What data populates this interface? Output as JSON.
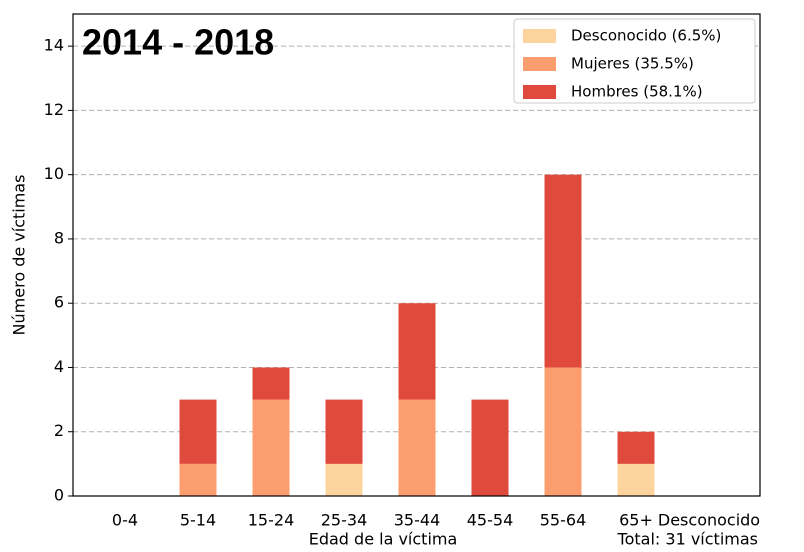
{
  "chart_data": {
    "type": "bar",
    "stacked": true,
    "title": "2014 - 2018",
    "xlabel": "Edad de la víctima",
    "ylabel": "Número de víctimas",
    "note": "Total: 31 víctimas",
    "categories": [
      "0-4",
      "5-14",
      "15-24",
      "25-34",
      "35-44",
      "45-54",
      "55-64",
      "65+",
      "Desconocido"
    ],
    "series": [
      {
        "name": "Desconocido (6.5%)",
        "color": "#fdd49e",
        "values": [
          0,
          0,
          0,
          1,
          0,
          0,
          0,
          1,
          0
        ]
      },
      {
        "name": "Mujeres (35.5%)",
        "color": "#fc9d6f",
        "values": [
          0,
          1,
          3,
          0,
          3,
          0,
          4,
          0,
          0
        ]
      },
      {
        "name": "Hombres (58.1%)",
        "color": "#df4a3c",
        "values": [
          0,
          2,
          1,
          2,
          3,
          3,
          6,
          1,
          0
        ]
      }
    ],
    "ylim": [
      0,
      15
    ],
    "yticks": [
      0,
      2,
      4,
      6,
      8,
      10,
      12,
      14
    ],
    "grid": true,
    "legend": "upper right"
  }
}
